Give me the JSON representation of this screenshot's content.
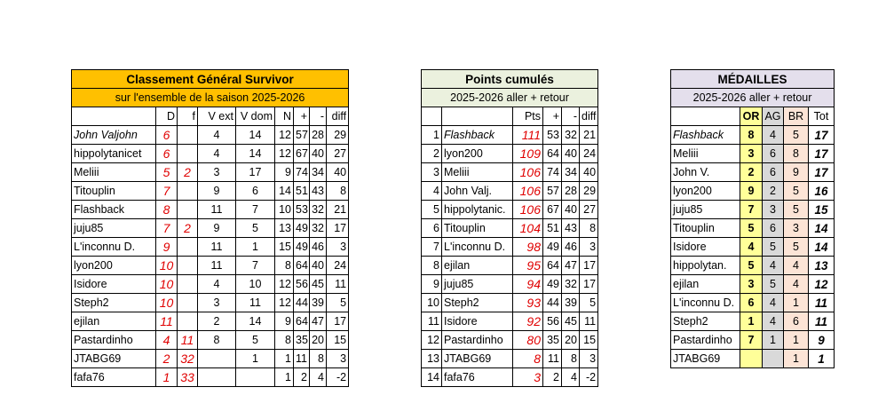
{
  "standings": {
    "title": "Classement Général Survivor",
    "subtitle": "sur l'ensemble de la saison 2025-2026",
    "columns": [
      null,
      "D",
      "f",
      "V ext",
      "V dom",
      "N",
      "+",
      "-",
      "diff"
    ],
    "rows": [
      [
        "John Valjohn",
        6,
        null,
        4,
        14,
        12,
        57,
        28,
        29
      ],
      [
        "hippolytanicet",
        6,
        null,
        4,
        14,
        12,
        67,
        40,
        27
      ],
      [
        "Meliii",
        5,
        2,
        3,
        17,
        9,
        74,
        34,
        40
      ],
      [
        "Titouplin",
        7,
        null,
        9,
        6,
        14,
        51,
        43,
        8
      ],
      [
        "Flashback",
        8,
        null,
        11,
        7,
        10,
        53,
        32,
        21
      ],
      [
        "juju85",
        7,
        2,
        9,
        5,
        13,
        49,
        32,
        17
      ],
      [
        "L'inconnu D.",
        9,
        null,
        11,
        1,
        15,
        49,
        46,
        3
      ],
      [
        "lyon200",
        10,
        null,
        11,
        7,
        8,
        64,
        40,
        24
      ],
      [
        "Isidore",
        10,
        null,
        4,
        10,
        12,
        56,
        45,
        11
      ],
      [
        "Steph2",
        10,
        null,
        3,
        11,
        12,
        44,
        39,
        5
      ],
      [
        "ejilan",
        11,
        null,
        2,
        14,
        9,
        64,
        47,
        17
      ],
      [
        "Pastardinho",
        4,
        11,
        8,
        5,
        8,
        35,
        20,
        15
      ],
      [
        "JTABG69",
        2,
        32,
        null,
        1,
        1,
        11,
        8,
        3
      ],
      [
        "fafa76",
        1,
        33,
        null,
        null,
        1,
        2,
        4,
        -2
      ]
    ]
  },
  "points": {
    "title": "Points cumulés",
    "subtitle": "2025-2026 aller  + retour",
    "columns": [
      null,
      null,
      "Pts",
      "+",
      "-",
      "diff"
    ],
    "rows": [
      [
        1,
        "Flashback",
        111,
        53,
        32,
        21
      ],
      [
        2,
        "lyon200",
        109,
        64,
        40,
        24
      ],
      [
        3,
        "Meliii",
        106,
        74,
        34,
        40
      ],
      [
        4,
        "John Valj.",
        106,
        57,
        28,
        29
      ],
      [
        5,
        "hippolytanic.",
        106,
        67,
        40,
        27
      ],
      [
        6,
        "Titouplin",
        104,
        51,
        43,
        8
      ],
      [
        7,
        "L'inconnu D.",
        98,
        49,
        46,
        3
      ],
      [
        8,
        "ejilan",
        95,
        64,
        47,
        17
      ],
      [
        9,
        "juju85",
        94,
        49,
        32,
        17
      ],
      [
        10,
        "Steph2",
        93,
        44,
        39,
        5
      ],
      [
        11,
        "Isidore",
        92,
        56,
        45,
        11
      ],
      [
        12,
        "Pastardinho",
        80,
        35,
        20,
        15
      ],
      [
        13,
        "JTABG69",
        8,
        11,
        8,
        3
      ],
      [
        14,
        "fafa76",
        3,
        2,
        4,
        -2
      ]
    ]
  },
  "medals": {
    "title": "MÉDAILLES",
    "subtitle": "2025-2026 aller + retour",
    "columns": [
      null,
      "OR",
      "AG",
      "BR",
      "Tot"
    ],
    "rows": [
      [
        "Flashback",
        8,
        4,
        5,
        17
      ],
      [
        "Meliii",
        3,
        6,
        8,
        17
      ],
      [
        "John V.",
        2,
        6,
        9,
        17
      ],
      [
        "lyon200",
        9,
        2,
        5,
        16
      ],
      [
        "juju85",
        7,
        3,
        5,
        15
      ],
      [
        "Titouplin",
        5,
        6,
        3,
        14
      ],
      [
        "Isidore",
        4,
        5,
        5,
        14
      ],
      [
        "hippolytan.",
        5,
        4,
        4,
        13
      ],
      [
        "ejilan",
        3,
        5,
        4,
        12
      ],
      [
        "L'inconnu D.",
        6,
        4,
        1,
        11
      ],
      [
        "Steph2",
        1,
        4,
        6,
        11
      ],
      [
        "Pastardinho",
        7,
        1,
        1,
        9
      ],
      [
        "JTABG69",
        null,
        null,
        1,
        1
      ]
    ]
  }
}
